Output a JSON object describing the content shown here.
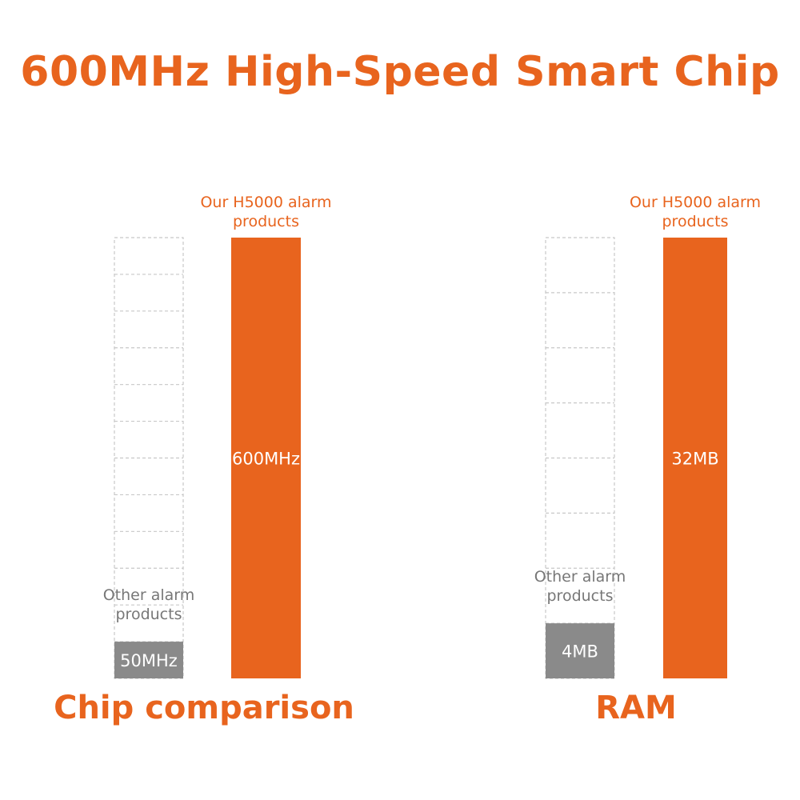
{
  "title": "600MHz High-Speed Smart Chip",
  "colors": {
    "accent": "#e8641e",
    "competitor_fill": "#8a8a8a",
    "dashed_outline": "#c8c8c8"
  },
  "chart_data": [
    {
      "type": "bar",
      "caption": "Chip comparison",
      "categories": [
        "Other alarm products",
        "Our H5000 alarm products"
      ],
      "values": [
        50,
        600
      ],
      "value_labels": [
        "50MHz",
        "600MHz"
      ],
      "unit": "MHz",
      "ylim": [
        0,
        600
      ],
      "outline_segments": 12,
      "labels": {
        "ours": [
          "Our H5000 alarm",
          "products"
        ],
        "other": [
          "Other alarm",
          "products"
        ]
      }
    },
    {
      "type": "bar",
      "caption": "RAM",
      "categories": [
        "Other alarm products",
        "Our H5000 alarm products"
      ],
      "values": [
        4,
        32
      ],
      "value_labels": [
        "4MB",
        "32MB"
      ],
      "unit": "MB",
      "ylim": [
        0,
        32
      ],
      "outline_segments": 8,
      "labels": {
        "ours": [
          "Our H5000 alarm",
          "products"
        ],
        "other": [
          "Other alarm",
          "products"
        ]
      }
    }
  ]
}
